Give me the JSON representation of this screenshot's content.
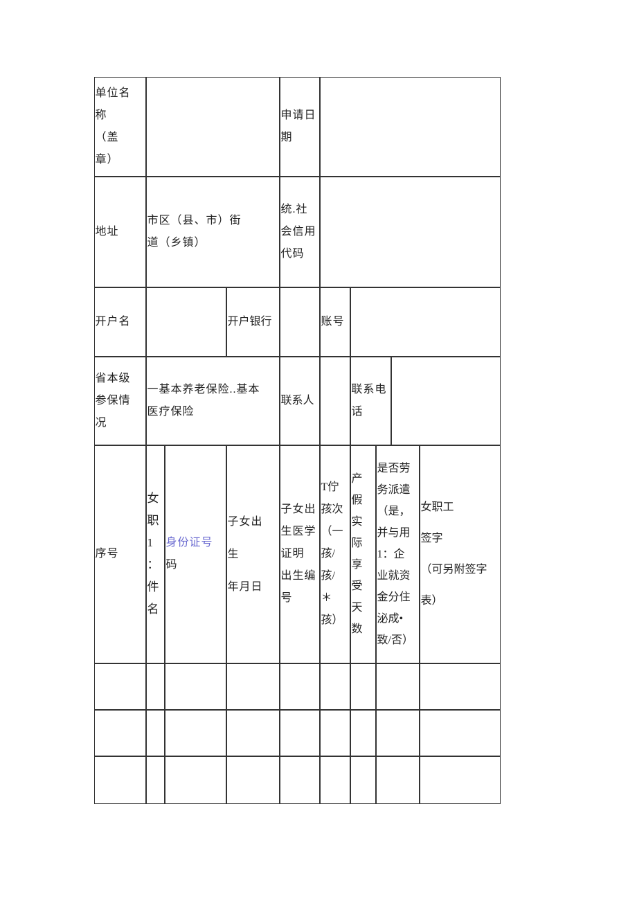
{
  "form": {
    "row1": {
      "unit_name_label": "单位名\n称\n（盖\n章）",
      "unit_name_value": "",
      "apply_date_label": "申请日\n期",
      "apply_date_value": ""
    },
    "row2": {
      "address_label": "地址",
      "address_value": "市区（县、市）街\n道（乡镇）",
      "credit_code_label": "统.社\n会信用\n代码",
      "credit_code_value": ""
    },
    "row3": {
      "account_name_label": "开户名",
      "account_name_value": "",
      "bank_label": "开户银行",
      "bank_value": "",
      "account_no_label": "账号",
      "account_no_value": ""
    },
    "row4": {
      "insurance_label": "省本级\n参保情\n况",
      "insurance_value": "一基本养老保险..基本\n医疗保险",
      "contact_label": "联系人",
      "contact_value": "",
      "phone_label": "联系电\n话",
      "phone_value": ""
    },
    "headers": {
      "seq": "序号",
      "name": "女\n职\n1\n：\n件\n名",
      "id_blue": "身份证号",
      "id_rest": "码",
      "child_birth_date": "子女出\n生\n年月日",
      "birth_cert": "子女出\n生医学\n证明\n出生编\n号",
      "child_order": "T佇\n孩次\n（一\n孩/\n孩/\n＊\n孩）",
      "leave_days": "产\n假\n实\n际\n享\n受\n天\n数",
      "dispatch": "是否劳\n务派遣\n（是，\n并与用\n1：企\n业就资\n金分住\n泌成•\n致/否）",
      "signature": "女职工\n签字\n（可另附签字\n表）"
    },
    "data_rows": [
      [
        "",
        "",
        "",
        "",
        "",
        "",
        "",
        "",
        "",
        ""
      ],
      [
        "",
        "",
        "",
        "",
        "",
        "",
        "",
        "",
        "",
        ""
      ],
      [
        "",
        "",
        "",
        "",
        "",
        "",
        "",
        "",
        "",
        ""
      ]
    ]
  }
}
